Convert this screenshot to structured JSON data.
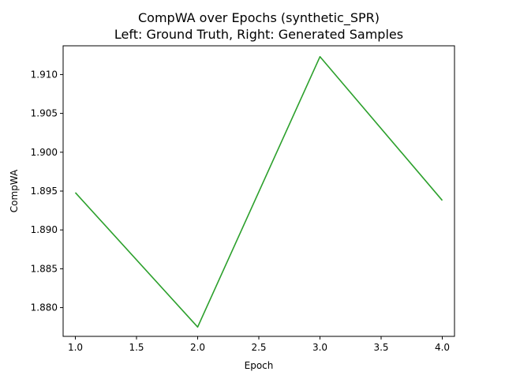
{
  "chart_data": {
    "type": "line",
    "title": "CompWA over Epochs (synthetic_SPR)",
    "subtitle": "Left: Ground Truth, Right: Generated Samples",
    "xlabel": "Epoch",
    "ylabel": "CompWA",
    "x": [
      1.0,
      2.0,
      3.0,
      4.0
    ],
    "series": [
      {
        "color": "#2ca02c",
        "values": [
          1.8948,
          1.8775,
          1.9123,
          1.8938
        ]
      }
    ],
    "xlim": [
      0.9,
      4.1
    ],
    "ylim": [
      1.8763,
      1.9137
    ],
    "xticks": [
      1.0,
      1.5,
      2.0,
      2.5,
      3.0,
      3.5,
      4.0
    ],
    "xtick_labels": [
      "1.0",
      "1.5",
      "2.0",
      "2.5",
      "3.0",
      "3.5",
      "4.0"
    ],
    "yticks": [
      1.88,
      1.885,
      1.89,
      1.895,
      1.9,
      1.905,
      1.91
    ],
    "ytick_labels": [
      "1.880",
      "1.885",
      "1.890",
      "1.895",
      "1.900",
      "1.905",
      "1.910"
    ],
    "grid": false,
    "legend": "none"
  }
}
